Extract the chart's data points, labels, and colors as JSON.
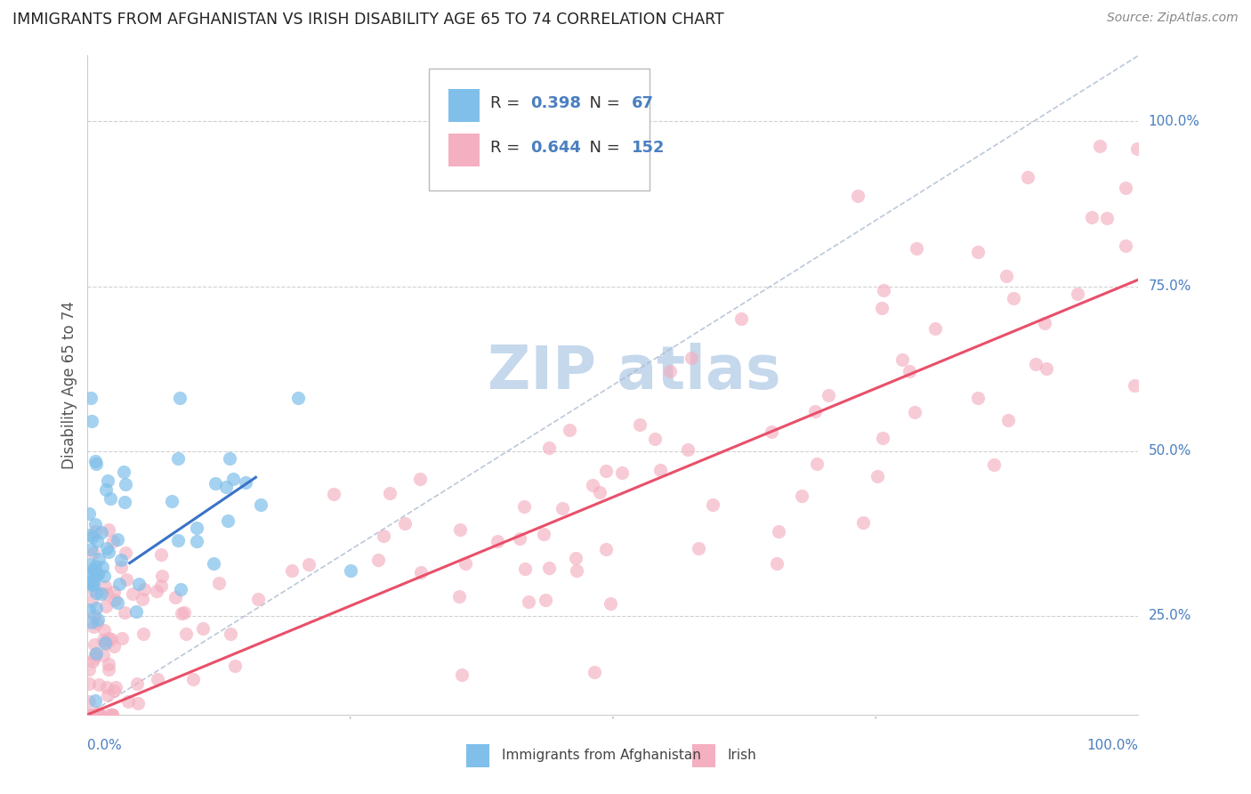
{
  "title": "IMMIGRANTS FROM AFGHANISTAN VS IRISH DISABILITY AGE 65 TO 74 CORRELATION CHART",
  "source": "Source: ZipAtlas.com",
  "ylabel": "Disability Age 65 to 74",
  "ytick_positions": [
    25,
    50,
    75,
    100
  ],
  "ytick_labels": [
    "25.0%",
    "50.0%",
    "75.0%",
    "100.0%"
  ],
  "legend_label_blue": "Immigrants from Afghanistan",
  "legend_label_pink": "Irish",
  "blue_color": "#7fbfea",
  "pink_color": "#f4afc0",
  "blue_line_color": "#3a72c8",
  "pink_line_color": "#e8506a",
  "diag_color": "#aabbd0",
  "title_color": "#222222",
  "source_color": "#888888",
  "legend_r_color": "#4a7fc0",
  "legend_label_color": "#444444",
  "watermark_color": "#c5d8ec",
  "axis_tick_color": "#4a7fc0",
  "grid_color": "#cccccc",
  "xaxis_range": [
    0,
    100
  ],
  "yaxis_range": [
    10,
    110
  ],
  "pink_line_x": [
    0,
    100
  ],
  "pink_line_y": [
    10,
    76
  ],
  "blue_line_x": [
    4,
    16
  ],
  "blue_line_y": [
    33,
    46
  ]
}
